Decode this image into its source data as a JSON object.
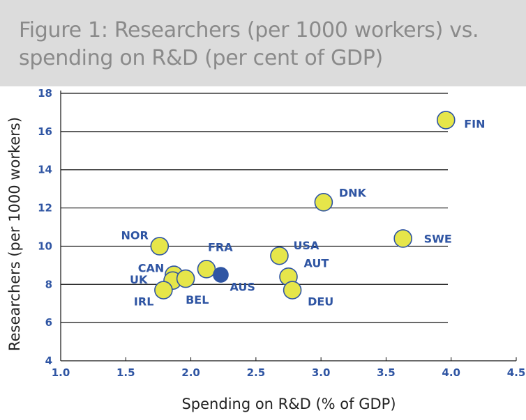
{
  "header": {
    "title": "Figure 1: Researchers (per 1000 workers) vs. spending on R&D (per cent of GDP)"
  },
  "colors": {
    "header_bg": "#dcdcdc",
    "title_text": "#8a8a8a",
    "label_blue": "#2f55a3",
    "point_fill": "#e6e64a",
    "point_stroke": "#2f55a3",
    "highlight_fill": "#2f55a3"
  },
  "chart_data": {
    "type": "scatter",
    "title": "Figure 1: Researchers (per 1000 workers) vs. spending on R&D (per cent of GDP)",
    "xlabel": "Spending on R&D (% of GDP)",
    "ylabel": "Researchers (per 1000 workers)",
    "xlim": [
      1.0,
      4.5
    ],
    "ylim": [
      4,
      18
    ],
    "xticks": [
      "1.0",
      "1.5",
      "2.0",
      "2.5",
      "3.0",
      "3.5",
      "4.0",
      "4.5"
    ],
    "yticks": [
      "4",
      "6",
      "8",
      "10",
      "12",
      "14",
      "16",
      "18"
    ],
    "grid": "horizontal",
    "points": [
      {
        "label": "FIN",
        "x": 3.96,
        "y": 16.6
      },
      {
        "label": "DNK",
        "x": 3.02,
        "y": 12.3
      },
      {
        "label": "SWE",
        "x": 3.63,
        "y": 10.4
      },
      {
        "label": "NOR",
        "x": 1.76,
        "y": 10.0
      },
      {
        "label": "USA",
        "x": 2.68,
        "y": 9.5
      },
      {
        "label": "FRA",
        "x": 2.12,
        "y": 8.8
      },
      {
        "label": "CAN",
        "x": 1.87,
        "y": 8.5
      },
      {
        "label": "AUT",
        "x": 2.75,
        "y": 8.4
      },
      {
        "label": "UK",
        "x": 1.86,
        "y": 8.2
      },
      {
        "label": "BEL",
        "x": 1.96,
        "y": 8.3
      },
      {
        "label": "IRL",
        "x": 1.79,
        "y": 7.7
      },
      {
        "label": "DEU",
        "x": 2.78,
        "y": 7.7
      },
      {
        "label": "AUS",
        "x": 2.23,
        "y": 8.5,
        "highlight": true
      }
    ]
  }
}
